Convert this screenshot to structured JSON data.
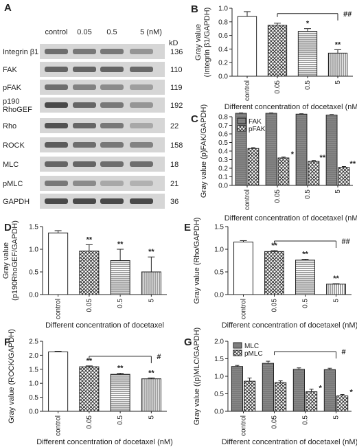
{
  "blot": {
    "panel_letter": "A",
    "columns": [
      "control",
      "0.05",
      "0.5",
      "5 (nM)"
    ],
    "kd_header": "kD",
    "rows": [
      {
        "label": "Integrin β1",
        "kd": "136",
        "intensity": [
          0.55,
          0.5,
          0.5,
          0.35
        ]
      },
      {
        "label": "FAK",
        "kd": "110",
        "intensity": [
          0.6,
          0.6,
          0.6,
          0.58
        ]
      },
      {
        "label": "pFAK",
        "kd": "119",
        "intensity": [
          0.55,
          0.45,
          0.4,
          0.3
        ]
      },
      {
        "label": "p190\nRhoGEF",
        "kd": "192",
        "intensity": [
          0.75,
          0.6,
          0.5,
          0.35
        ]
      },
      {
        "label": "Rho",
        "kd": "22",
        "intensity": [
          0.7,
          0.6,
          0.5,
          0.25
        ]
      },
      {
        "label": "ROCK",
        "kd": "158",
        "intensity": [
          0.65,
          0.55,
          0.5,
          0.45
        ]
      },
      {
        "label": "MLC",
        "kd": "18",
        "intensity": [
          0.6,
          0.6,
          0.55,
          0.55
        ]
      },
      {
        "label": "pMLC",
        "kd": "21",
        "intensity": [
          0.5,
          0.4,
          0.25,
          0.2
        ]
      },
      {
        "label": "GAPDH",
        "kd": "36",
        "intensity": [
          0.75,
          0.75,
          0.75,
          0.75
        ]
      }
    ]
  },
  "chart_data": [
    {
      "panel_letter": "B",
      "type": "bar",
      "categories": [
        "control",
        "0.05",
        "0.5",
        "5"
      ],
      "values": [
        0.88,
        0.75,
        0.66,
        0.34
      ],
      "errors": [
        0.07,
        0.03,
        0.04,
        0.05
      ],
      "significance": [
        "",
        "",
        "*",
        "**"
      ],
      "ylabel": "Gray value\n(Integrin β1/GAPDH)",
      "xlabel": "Different concentration of docetaxel (nM)",
      "ylim": [
        0,
        1.0
      ],
      "yticks": [
        "0.0",
        "0.2",
        "0.4",
        "0.6",
        "0.8",
        "1.0"
      ],
      "bracket": {
        "label": "##",
        "from": 1,
        "to": 3
      }
    },
    {
      "panel_letter": "C",
      "type": "bar",
      "categories": [
        "control",
        "0.05",
        "0.5",
        "5"
      ],
      "series": [
        {
          "name": "FAK",
          "values": [
            0.84,
            0.84,
            0.83,
            0.82
          ],
          "errors": [
            0.005,
            0.005,
            0.005,
            0.005
          ],
          "significance": [
            "",
            "",
            "",
            ""
          ]
        },
        {
          "name": "pFAK",
          "values": [
            0.43,
            0.32,
            0.28,
            0.21
          ],
          "errors": [
            0.01,
            0.01,
            0.01,
            0.01
          ],
          "significance": [
            "",
            "*",
            "**",
            "**"
          ]
        }
      ],
      "ylabel": "Gray value (p)FAK/GAPDH)",
      "xlabel": "Different concentration of docetaxel (nM)",
      "ylim": [
        0,
        0.8
      ],
      "yticks": [
        "0.0",
        "0.1",
        "0.2",
        "0.3",
        "0.4",
        "0.5",
        "0.6",
        "0.7",
        "0.8"
      ],
      "legend": "top-left"
    },
    {
      "panel_letter": "D",
      "type": "bar",
      "categories": [
        "control",
        "0.05",
        "0.5",
        "5"
      ],
      "values": [
        1.36,
        0.96,
        0.75,
        0.5
      ],
      "errors": [
        0.05,
        0.14,
        0.25,
        0.33
      ],
      "significance": [
        "",
        "**",
        "**",
        "**"
      ],
      "ylabel": "Gray value\n(p190RhoGEF/GAPDH)",
      "xlabel": "Different concentration of docetaxel",
      "ylim": [
        0,
        1.5
      ],
      "yticks": [
        "0.0",
        "0.5",
        "1.0",
        "1.5"
      ]
    },
    {
      "panel_letter": "E",
      "type": "bar",
      "categories": [
        "control",
        "0.05",
        "0.5",
        "5"
      ],
      "values": [
        1.16,
        0.95,
        0.76,
        0.23
      ],
      "errors": [
        0.03,
        0.02,
        0.02,
        0.01
      ],
      "significance": [
        "",
        "**",
        "**",
        "**"
      ],
      "ylabel": "Gray value (Rho/GAPDH)",
      "xlabel": "Different concentration of docetaxel (nM)",
      "ylim": [
        0,
        1.5
      ],
      "yticks": [
        "0.0",
        "0.5",
        "1.0",
        "1.5"
      ],
      "bracket": {
        "label": "##",
        "from": 1,
        "to": 3
      }
    },
    {
      "panel_letter": "F",
      "type": "bar",
      "categories": [
        "control",
        "0.05",
        "0.5",
        "5"
      ],
      "values": [
        2.12,
        1.59,
        1.32,
        1.16
      ],
      "errors": [
        0.02,
        0.03,
        0.04,
        0.03
      ],
      "significance": [
        "",
        "**",
        "**",
        "**"
      ],
      "ylabel": "Gray value (ROCK/GAPDH)",
      "xlabel": "Different concentration of docetaxel (nM)",
      "ylim": [
        0,
        2.5
      ],
      "yticks": [
        "0.0",
        "0.5",
        "1.0",
        "1.5",
        "2.0",
        "2.5"
      ],
      "bracket": {
        "label": "#",
        "from": 1,
        "to": 3
      }
    },
    {
      "panel_letter": "G",
      "type": "bar",
      "categories": [
        "control",
        "0.05",
        "0.5",
        "5"
      ],
      "series": [
        {
          "name": "MLC",
          "values": [
            1.28,
            1.37,
            1.2,
            1.19
          ],
          "errors": [
            0.03,
            0.06,
            0.04,
            0.04
          ],
          "significance": [
            "",
            "",
            "",
            ""
          ]
        },
        {
          "name": "pMLC",
          "values": [
            0.86,
            0.82,
            0.56,
            0.44
          ],
          "errors": [
            0.09,
            0.05,
            0.07,
            0.04
          ],
          "significance": [
            "",
            "",
            "*",
            "*"
          ]
        }
      ],
      "ylabel": "Gray value ((p)MLC/GAPDH)",
      "xlabel": "Different concentration of docetaxel (nM)",
      "ylim": [
        0,
        2.0
      ],
      "yticks": [
        "0.0",
        "0.5",
        "1.0",
        "1.5",
        "2.0"
      ],
      "legend": "top-left",
      "bracket": {
        "label": "#",
        "from": 1,
        "to": 3
      }
    }
  ]
}
